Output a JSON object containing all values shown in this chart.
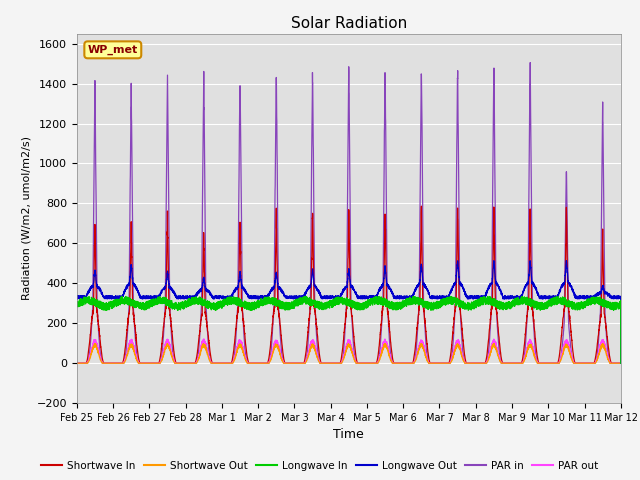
{
  "title": "Solar Radiation",
  "xlabel": "Time",
  "ylabel": "Radiation (W/m2, umol/m2/s)",
  "ylim": [
    -200,
    1650
  ],
  "yticks": [
    -200,
    0,
    200,
    400,
    600,
    800,
    1000,
    1200,
    1400,
    1600
  ],
  "x_labels": [
    "Feb 25",
    "Feb 26",
    "Feb 27",
    "Feb 28",
    "Mar 1",
    "Mar 2",
    "Mar 3",
    "Mar 4",
    "Mar 5",
    "Mar 6",
    "Mar 7",
    "Mar 8",
    "Mar 9",
    "Mar 10",
    "Mar 11",
    "Mar 12"
  ],
  "num_days": 15,
  "station_label": "WP_met",
  "colors": {
    "shortwave_in": "#cc0000",
    "shortwave_out": "#ff9900",
    "longwave_in": "#00cc00",
    "longwave_out": "#0000cc",
    "par_in": "#8844bb",
    "par_out": "#ff44ff"
  },
  "background_color": "#e8e8e8",
  "plot_bg_color": "#e0e0e0",
  "legend_labels": [
    "Shortwave In",
    "Shortwave Out",
    "Longwave In",
    "Longwave Out",
    "PAR in",
    "PAR out"
  ],
  "station_box_facecolor": "#ffff99",
  "station_box_edgecolor": "#cc8800",
  "station_text_color": "#880000",
  "sw_in_peaks": [
    710,
    700,
    730,
    650,
    730,
    740,
    750,
    750,
    770,
    760,
    790,
    770,
    760,
    770,
    640
  ],
  "lw_out_peaks": [
    430,
    450,
    420,
    400,
    420,
    420,
    430,
    430,
    440,
    450,
    460,
    460,
    460,
    460,
    370
  ],
  "par_in_peaks": [
    1380,
    1370,
    1420,
    1430,
    1420,
    1450,
    1430,
    1460,
    1460,
    1490,
    1460,
    1480,
    1510,
    980,
    1290
  ],
  "figsize": [
    6.4,
    4.8
  ],
  "dpi": 100
}
